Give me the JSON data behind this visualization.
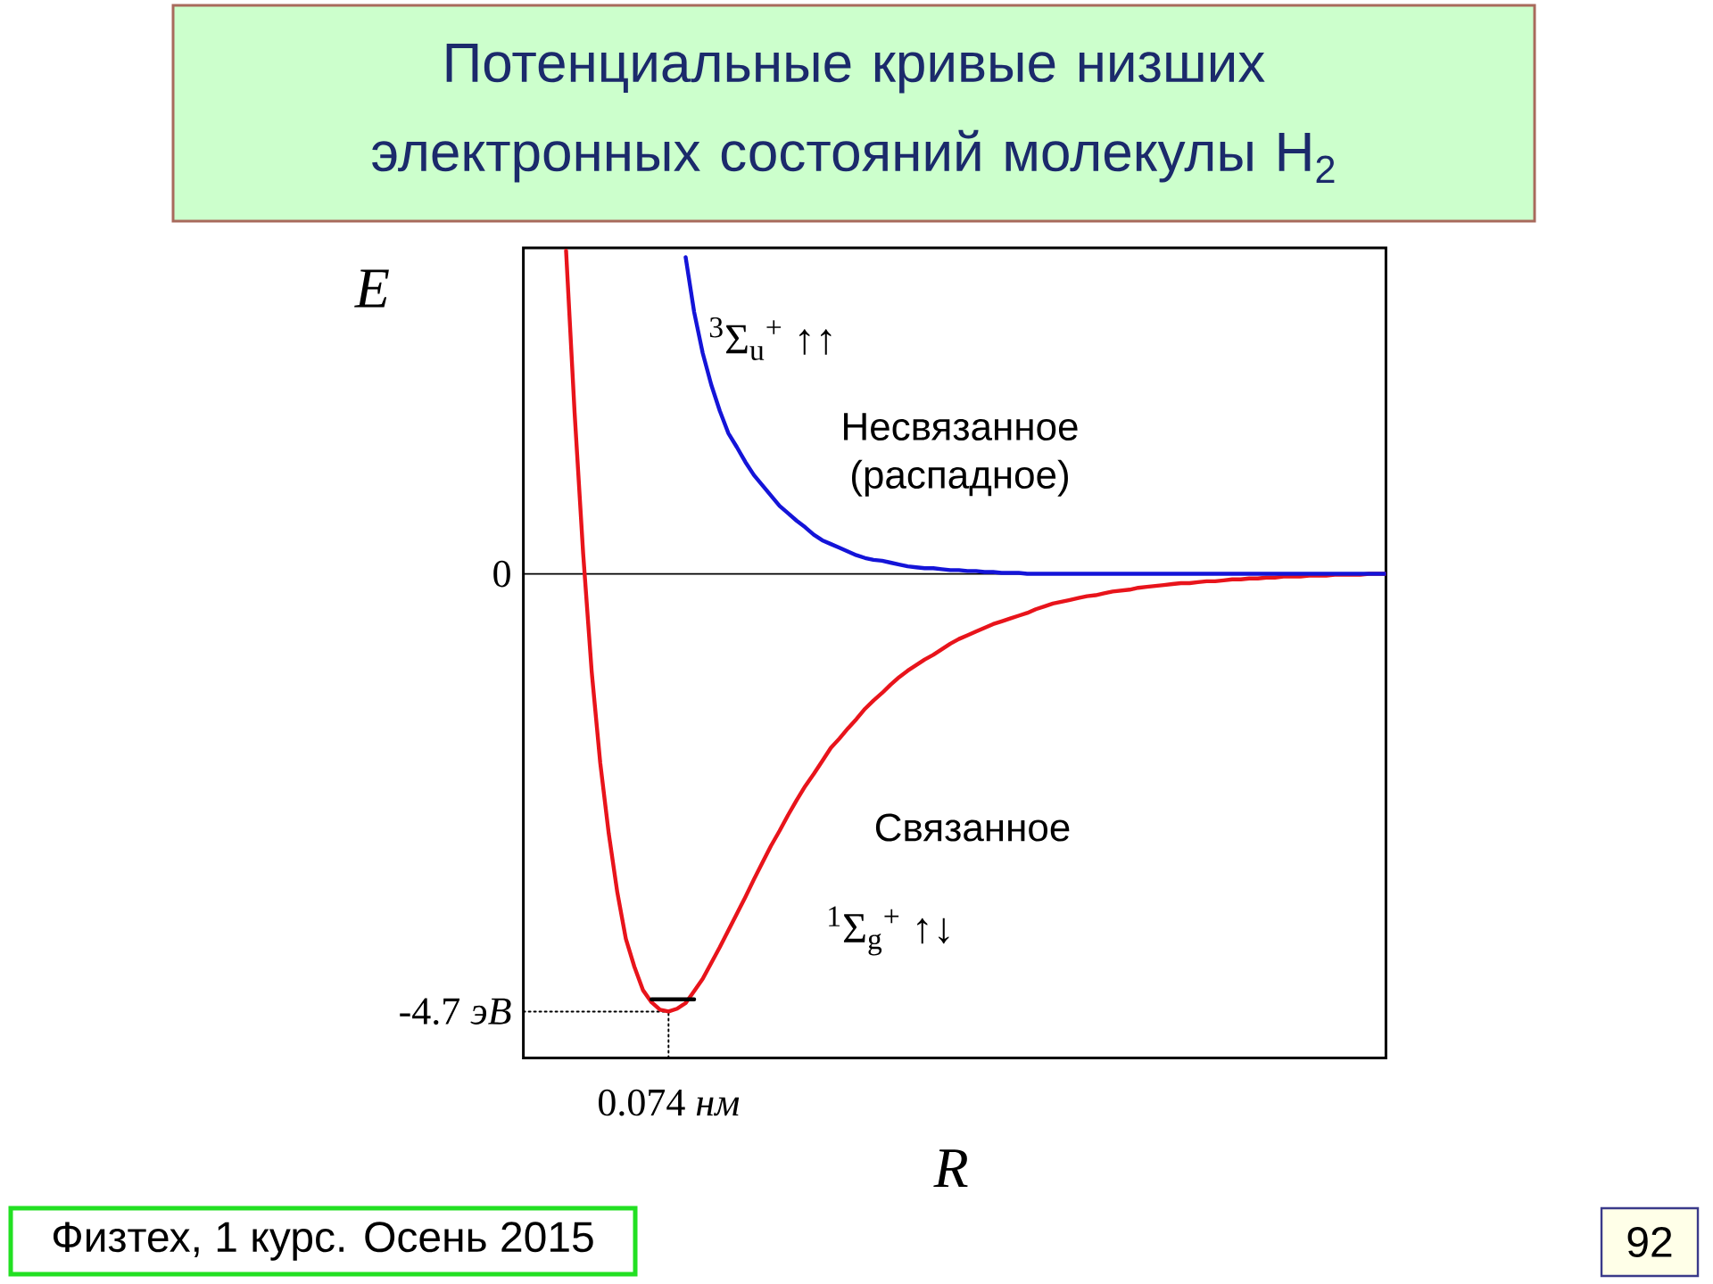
{
  "chart_data": {
    "type": "line",
    "title": "Потенциальные кривые низших электронных состояний молекулы H$_{2}$",
    "xlabel": "R",
    "ylabel": "E",
    "categories": [
      null,
      null,
      null,
      null,
      null,
      null,
      null,
      null,
      null,
      null,
      null,
      null,
      null,
      null,
      null,
      null,
      null,
      "0.074 *нм*",
      null,
      null,
      null,
      null,
      null,
      null,
      null,
      null,
      null,
      null,
      null,
      null,
      null,
      null,
      null,
      null,
      null,
      null,
      null,
      null,
      null,
      null,
      null,
      null,
      null,
      null,
      null,
      null,
      null,
      null,
      null,
      null,
      null,
      null,
      null,
      null,
      null,
      null,
      null,
      null,
      null,
      null,
      null,
      null,
      null,
      null,
      null,
      null,
      null,
      null,
      null,
      null,
      null,
      null,
      null,
      null,
      null,
      null,
      null,
      null,
      null,
      null,
      null,
      null,
      null,
      null,
      null,
      null,
      null,
      null,
      null,
      null,
      null,
      null,
      null,
      null,
      null,
      null,
      null,
      null,
      null,
      null,
      null,
      null
    ],
    "ylim": [
      -5.2,
      3.5
    ],
    "yticks": [
      {
        "value": -4.7,
        "label": "-4.7 *эВ*"
      },
      {
        "value": 0,
        "label": "0"
      }
    ],
    "series": [
      {
        "color": "#000000",
        "line_style": "dotted",
        "values": [
          -4.7,
          -4.7,
          -4.7,
          -4.7,
          -4.7,
          -4.7,
          -4.7,
          -4.7,
          -4.7,
          -4.7,
          -4.7,
          -4.7,
          -4.7,
          -4.7,
          -4.7,
          -4.7,
          -4.7,
          -4.7,
          null,
          null,
          null,
          null,
          null,
          null,
          null,
          null,
          null,
          null,
          null,
          null,
          null,
          null,
          null,
          null,
          null,
          null,
          null,
          null,
          null,
          null,
          null,
          null,
          null,
          null,
          null,
          null,
          null,
          null,
          null,
          null,
          null,
          null,
          null,
          null,
          null,
          null,
          null,
          null,
          null,
          null,
          null,
          null,
          null,
          null,
          null,
          null,
          null,
          null,
          null,
          null,
          null,
          null,
          null,
          null,
          null,
          null,
          null,
          null,
          null,
          null,
          null,
          null,
          null,
          null,
          null,
          null,
          null,
          null,
          null,
          null,
          null,
          null,
          null,
          null,
          null,
          null,
          null,
          null,
          null,
          null,
          null,
          null
        ]
      },
      {
        "color": "#000000",
        "line_style": "dotted",
        "x": [
          "0.074 *нм*",
          "0.074 *нм*"
        ],
        "values": [
          -5.2,
          -4.7
        ]
      },
      {
        "color": "#e8141b",
        "values": [
          null,
          null,
          null,
          null,
          null,
          3.47,
          1.73,
          0.22,
          -1.05,
          -2.03,
          -2.79,
          -3.42,
          -3.92,
          -4.22,
          -4.47,
          -4.6,
          -4.68,
          -4.7,
          -4.67,
          -4.61,
          -4.48,
          -4.35,
          -4.18,
          -4.01,
          -3.83,
          -3.65,
          -3.47,
          -3.28,
          -3.1,
          -2.92,
          -2.76,
          -2.59,
          -2.43,
          -2.28,
          -2.15,
          -2.01,
          -1.87,
          -1.77,
          -1.66,
          -1.56,
          -1.45,
          -1.36,
          -1.28,
          -1.19,
          -1.11,
          -1.04,
          -0.98,
          -0.92,
          -0.87,
          -0.81,
          -0.75,
          -0.7,
          -0.66,
          -0.62,
          -0.58,
          -0.54,
          -0.51,
          -0.48,
          -0.45,
          -0.42,
          -0.38,
          -0.35,
          -0.32,
          -0.3,
          -0.28,
          -0.26,
          -0.24,
          -0.23,
          -0.21,
          -0.19,
          -0.18,
          -0.17,
          -0.15,
          -0.14,
          -0.13,
          -0.12,
          -0.11,
          -0.1,
          -0.1,
          -0.09,
          -0.08,
          -0.08,
          -0.07,
          -0.06,
          -0.06,
          -0.05,
          -0.05,
          -0.04,
          -0.04,
          -0.03,
          -0.03,
          -0.03,
          -0.02,
          -0.02,
          -0.02,
          -0.01,
          -0.01,
          -0.01,
          -0.01,
          0,
          0,
          0
        ]
      },
      {
        "color": "#1414d8",
        "values": [
          null,
          null,
          null,
          null,
          null,
          null,
          null,
          null,
          null,
          null,
          null,
          null,
          null,
          null,
          null,
          null,
          null,
          null,
          null,
          3.4,
          2.81,
          2.37,
          2.03,
          1.75,
          1.51,
          1.36,
          1.2,
          1.06,
          0.95,
          0.84,
          0.73,
          0.65,
          0.57,
          0.5,
          0.42,
          0.36,
          0.32,
          0.28,
          0.24,
          0.2,
          0.17,
          0.15,
          0.14,
          0.12,
          0.1,
          0.08,
          0.07,
          0.06,
          0.06,
          0.05,
          0.04,
          0.04,
          0.03,
          0.03,
          0.02,
          0.02,
          0.01,
          0.01,
          0.01,
          0,
          0,
          0,
          0,
          0,
          0,
          0,
          0,
          0,
          0,
          0,
          0,
          0,
          0,
          0,
          0,
          0,
          0,
          0,
          0,
          0,
          0,
          0,
          0,
          0,
          0,
          0,
          0,
          0,
          0,
          0,
          0,
          0,
          0,
          0,
          0,
          0,
          0,
          0,
          0,
          0,
          0,
          0
        ]
      },
      {
        "color": "#000000",
        "values": [
          null,
          null,
          null,
          null,
          null,
          null,
          null,
          null,
          null,
          null,
          null,
          null,
          null,
          null,
          null,
          -4.57,
          -4.57,
          -4.57,
          -4.57,
          -4.57,
          -4.57,
          null,
          null,
          null,
          null,
          null,
          null,
          null,
          null,
          null,
          null,
          null,
          null,
          null,
          null,
          null,
          null,
          null,
          null,
          null,
          null,
          null,
          null,
          null,
          null,
          null,
          null,
          null,
          null,
          null,
          null,
          null,
          null,
          null,
          null,
          null,
          null,
          null,
          null,
          null,
          null,
          null,
          null,
          null,
          null,
          null,
          null,
          null,
          null,
          null,
          null,
          null,
          null,
          null,
          null,
          null,
          null,
          null,
          null,
          null,
          null,
          null,
          null,
          null,
          null,
          null,
          null,
          null,
          null,
          null,
          null,
          null,
          null,
          null,
          null,
          null,
          null,
          null,
          null,
          null,
          null,
          null
        ]
      }
    ],
    "ref_lines": [
      {
        "axis": "y",
        "value": 0,
        "color": "#000000"
      }
    ],
    "annotations": [
      "Несвязанное (распадное)",
      "Связанное",
      "$^{3}$Σ$_{u}$$^{+}$ ↑↑",
      "$^{1}$Σ$_{g}$$^{+}$ ↑↓",
      "Физтех, 1 курс. Осень 2015",
      "92"
    ]
  }
}
